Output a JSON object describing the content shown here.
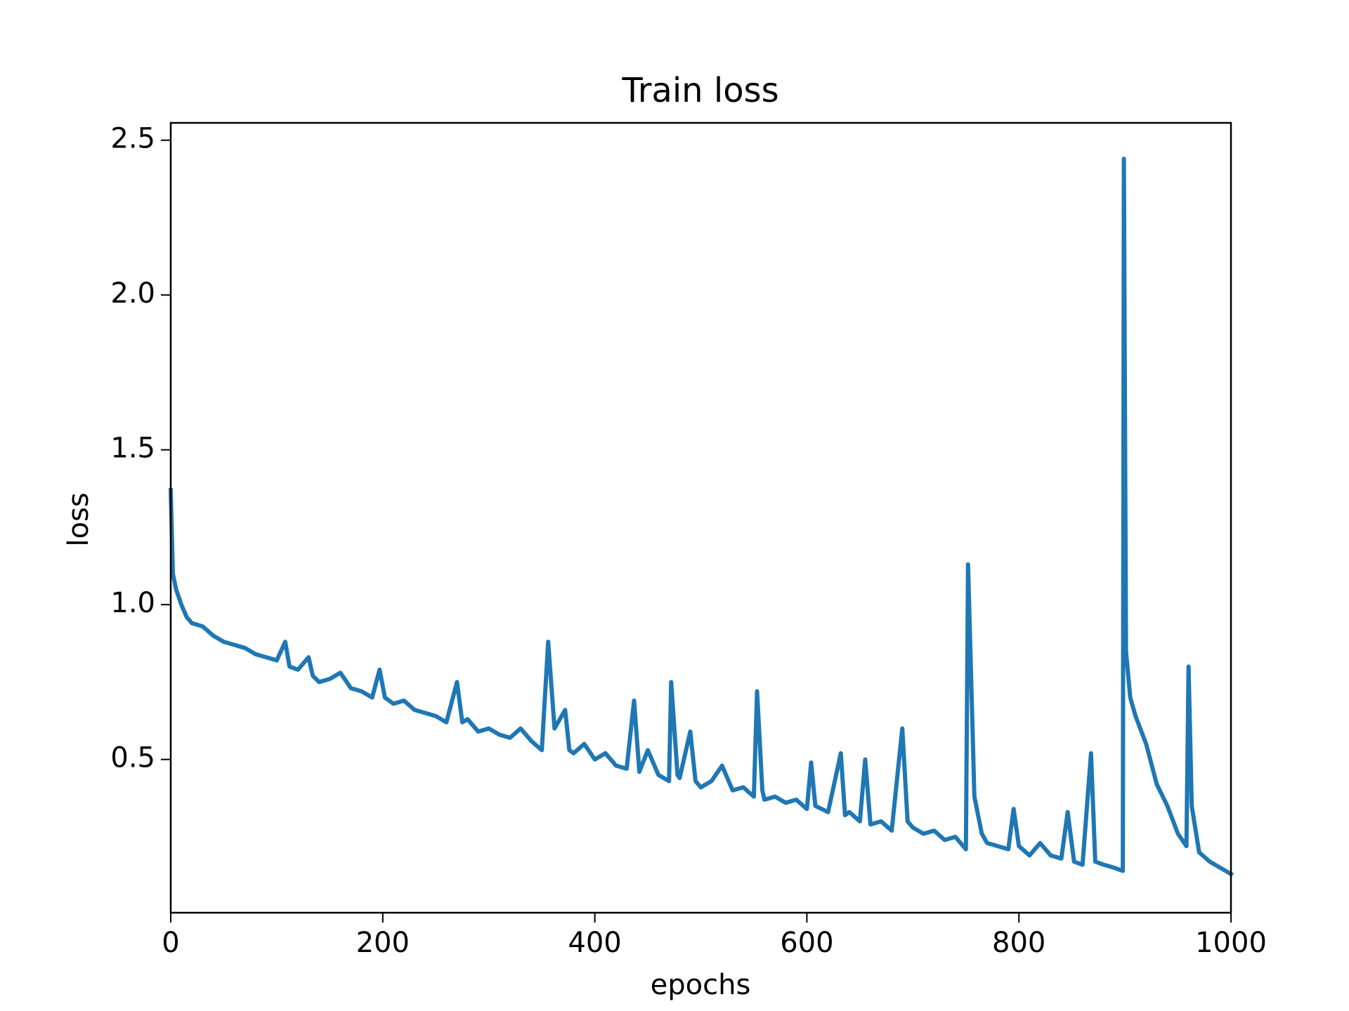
{
  "chart_data": {
    "type": "line",
    "title": "Train loss",
    "x_label": "epochs",
    "y_label": "loss",
    "x": [
      0,
      2,
      5,
      10,
      15,
      20,
      30,
      40,
      50,
      60,
      70,
      80,
      90,
      100,
      108,
      112,
      120,
      130,
      134,
      140,
      150,
      160,
      170,
      180,
      190,
      197,
      202,
      210,
      220,
      230,
      240,
      250,
      260,
      270,
      275,
      280,
      290,
      300,
      310,
      320,
      330,
      340,
      350,
      356,
      362,
      372,
      376,
      380,
      390,
      400,
      410,
      420,
      430,
      437,
      442,
      450,
      460,
      470,
      472,
      478,
      480,
      490,
      495,
      500,
      510,
      520,
      530,
      540,
      550,
      553,
      558,
      560,
      570,
      580,
      590,
      600,
      604,
      608,
      620,
      632,
      636,
      640,
      650,
      655,
      660,
      670,
      680,
      690,
      695,
      700,
      710,
      720,
      730,
      740,
      750,
      752,
      758,
      765,
      770,
      780,
      790,
      795,
      800,
      810,
      820,
      830,
      840,
      846,
      852,
      860,
      868,
      872,
      880,
      890,
      898,
      899,
      901,
      905,
      910,
      920,
      930,
      940,
      950,
      958,
      960,
      963,
      970,
      980,
      990,
      1000
    ],
    "series": [
      {
        "color": "#1f77b4",
        "values": [
          1.37,
          1.1,
          1.05,
          1.0,
          0.96,
          0.94,
          0.93,
          0.9,
          0.88,
          0.87,
          0.86,
          0.84,
          0.83,
          0.82,
          0.88,
          0.8,
          0.79,
          0.83,
          0.77,
          0.75,
          0.76,
          0.78,
          0.73,
          0.72,
          0.7,
          0.79,
          0.7,
          0.68,
          0.69,
          0.66,
          0.65,
          0.64,
          0.62,
          0.75,
          0.62,
          0.63,
          0.59,
          0.6,
          0.58,
          0.57,
          0.6,
          0.56,
          0.53,
          0.88,
          0.6,
          0.66,
          0.53,
          0.52,
          0.55,
          0.5,
          0.52,
          0.48,
          0.47,
          0.69,
          0.46,
          0.53,
          0.45,
          0.43,
          0.75,
          0.45,
          0.44,
          0.59,
          0.43,
          0.41,
          0.43,
          0.48,
          0.4,
          0.41,
          0.38,
          0.72,
          0.4,
          0.37,
          0.38,
          0.36,
          0.37,
          0.34,
          0.49,
          0.35,
          0.33,
          0.52,
          0.32,
          0.33,
          0.3,
          0.5,
          0.29,
          0.3,
          0.27,
          0.6,
          0.3,
          0.28,
          0.26,
          0.27,
          0.24,
          0.25,
          0.21,
          1.13,
          0.38,
          0.26,
          0.23,
          0.22,
          0.21,
          0.34,
          0.22,
          0.19,
          0.23,
          0.19,
          0.18,
          0.33,
          0.17,
          0.16,
          0.52,
          0.17,
          0.16,
          0.15,
          0.14,
          2.44,
          0.85,
          0.7,
          0.64,
          0.55,
          0.42,
          0.35,
          0.26,
          0.22,
          0.8,
          0.35,
          0.2,
          0.17,
          0.15,
          0.13
        ]
      }
    ],
    "xlim": [
      0,
      1000
    ],
    "xticks": [
      0,
      200,
      400,
      600,
      800,
      1000
    ],
    "ylim": [
      0.005,
      2.556
    ],
    "yticks": [
      0.5,
      {
        "value": 1,
        "label": "1.0"
      },
      1.5,
      {
        "value": 2,
        "label": "2.0"
      },
      2.5
    ]
  }
}
